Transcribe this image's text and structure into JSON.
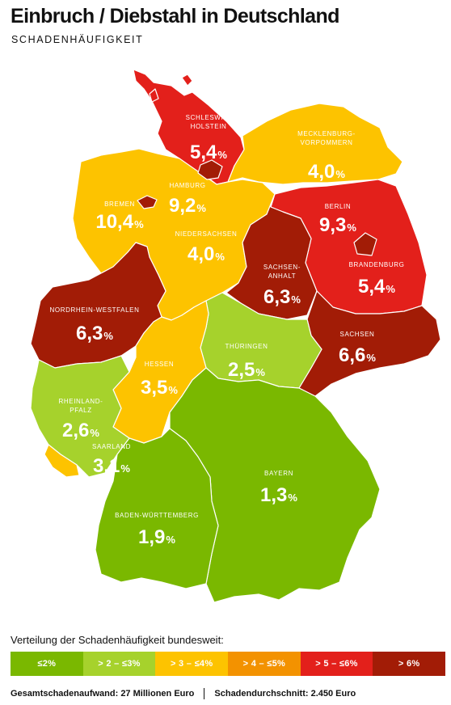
{
  "header": {
    "title": "Einbruch / Diebstahl in Deutschland",
    "subtitle": "SCHADENHÄUFIGKEIT"
  },
  "colors": {
    "c1": "#7ab800",
    "c2": "#a6d22c",
    "c3": "#fdc300",
    "c4": "#f39200",
    "c5": "#e3201b",
    "c6": "#a21c06"
  },
  "regions": [
    {
      "name": "SCHLESWIG-HOLSTEIN",
      "label_lines": [
        "SCHLESWIG-",
        "HOLSTEIN"
      ],
      "value": "5,4",
      "color": "c5"
    },
    {
      "name": "MECKLENBURG-VORPOMMERN",
      "label_lines": [
        "MECKLENBURG-",
        "VORPOMMERN"
      ],
      "value": "4,0",
      "color": "c3"
    },
    {
      "name": "HAMBURG",
      "label_lines": [
        "HAMBURG"
      ],
      "value": "9,2",
      "color": "c6"
    },
    {
      "name": "BREMEN",
      "label_lines": [
        "BREMEN"
      ],
      "value": "10,4",
      "color": "c6"
    },
    {
      "name": "BERLIN",
      "label_lines": [
        "BERLIN"
      ],
      "value": "9,3",
      "color": "c6"
    },
    {
      "name": "NIEDERSACHSEN",
      "label_lines": [
        "NIEDERSACHSEN"
      ],
      "value": "4,0",
      "color": "c3"
    },
    {
      "name": "SACHSEN-ANHALT",
      "label_lines": [
        "SACHSEN-",
        "ANHALT"
      ],
      "value": "6,3",
      "color": "c6"
    },
    {
      "name": "BRANDENBURG",
      "label_lines": [
        "BRANDENBURG"
      ],
      "value": "5,4",
      "color": "c5"
    },
    {
      "name": "NORDRHEIN-WESTFALEN",
      "label_lines": [
        "NORDRHEIN-WESTFALEN"
      ],
      "value": "6,3",
      "color": "c6"
    },
    {
      "name": "SACHSEN",
      "label_lines": [
        "SACHSEN"
      ],
      "value": "6,6",
      "color": "c6"
    },
    {
      "name": "THÜRINGEN",
      "label_lines": [
        "THÜRINGEN"
      ],
      "value": "2,5",
      "color": "c2"
    },
    {
      "name": "HESSEN",
      "label_lines": [
        "HESSEN"
      ],
      "value": "3,5",
      "color": "c3"
    },
    {
      "name": "RHEINLAND-PFALZ",
      "label_lines": [
        "RHEINLAND-",
        "PFALZ"
      ],
      "value": "2,6",
      "color": "c2"
    },
    {
      "name": "SAARLAND",
      "label_lines": [
        "SAARLAND"
      ],
      "value": "3,1",
      "color": "c3"
    },
    {
      "name": "BAYERN",
      "label_lines": [
        "BAYERN"
      ],
      "value": "1,3",
      "color": "c1"
    },
    {
      "name": "BADEN-WÜRTTEMBERG",
      "label_lines": [
        "BADEN-WÜRTTEMBERG"
      ],
      "value": "1,9",
      "color": "c1"
    }
  ],
  "unit": "%",
  "legend": {
    "title": "Verteilung der Schadenhäufigkeit bundesweit:",
    "items": [
      {
        "label": "≤2%",
        "color": "c1"
      },
      {
        "label": "> 2 – ≤3%",
        "color": "c2"
      },
      {
        "label": "> 3 – ≤4%",
        "color": "c3"
      },
      {
        "label": "> 4 – ≤5%",
        "color": "c4"
      },
      {
        "label": "> 5 – ≤6%",
        "color": "c5"
      },
      {
        "label": "> 6%",
        "color": "c6"
      }
    ]
  },
  "footer": {
    "total": "Gesamtschadenaufwand: 27 Millionen Euro",
    "average": "Schadendurchschnitt: 2.450 Euro"
  }
}
